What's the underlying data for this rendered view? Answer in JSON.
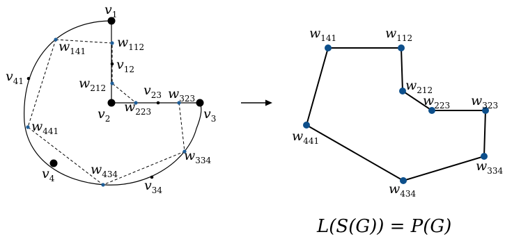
{
  "left_graph": {
    "vertices": [
      {
        "base": "v",
        "sub": "1"
      },
      {
        "base": "v",
        "sub": "2"
      },
      {
        "base": "v",
        "sub": "3"
      },
      {
        "base": "v",
        "sub": "4"
      }
    ],
    "edge_points": [
      {
        "base": "v",
        "sub": "12"
      },
      {
        "base": "v",
        "sub": "23"
      },
      {
        "base": "v",
        "sub": "34"
      },
      {
        "base": "v",
        "sub": "41"
      }
    ],
    "w_points": [
      {
        "base": "w",
        "sub": "141"
      },
      {
        "base": "w",
        "sub": "112"
      },
      {
        "base": "w",
        "sub": "212"
      },
      {
        "base": "w",
        "sub": "223"
      },
      {
        "base": "w",
        "sub": "323"
      },
      {
        "base": "w",
        "sub": "334"
      },
      {
        "base": "w",
        "sub": "434"
      },
      {
        "base": "w",
        "sub": "441"
      }
    ]
  },
  "right_polygon": {
    "vertices": [
      {
        "base": "w",
        "sub": "141"
      },
      {
        "base": "w",
        "sub": "112"
      },
      {
        "base": "w",
        "sub": "212"
      },
      {
        "base": "w",
        "sub": "223"
      },
      {
        "base": "w",
        "sub": "323"
      },
      {
        "base": "w",
        "sub": "334"
      },
      {
        "base": "w",
        "sub": "434"
      },
      {
        "base": "w",
        "sub": "441"
      }
    ]
  },
  "formula": "L(S(G)) = P(G)",
  "colors": {
    "vertex": "#000000",
    "w_point_left": "#1f5f99",
    "w_point_right": "#0d4f8b",
    "line": "#000000"
  }
}
